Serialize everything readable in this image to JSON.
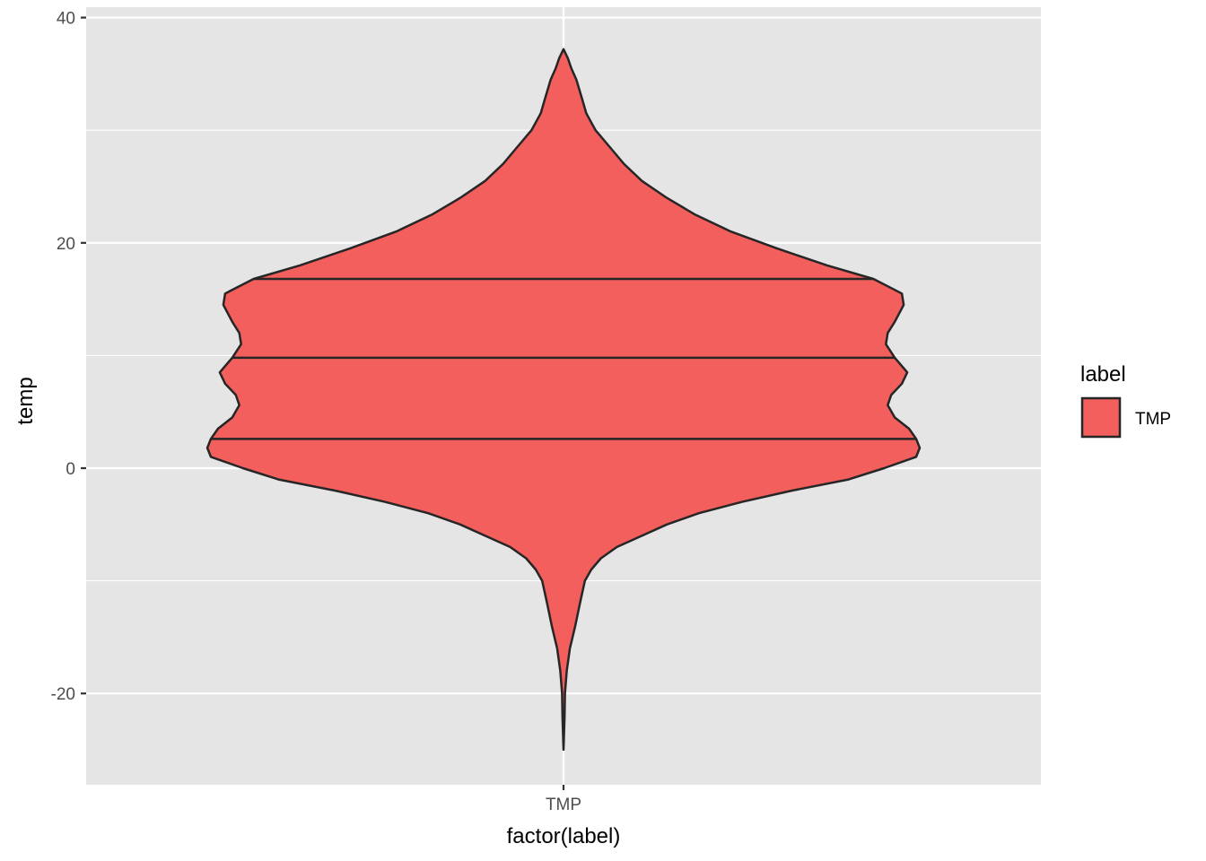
{
  "chart_data": {
    "type": "violin",
    "xlabel": "factor(label)",
    "ylabel": "temp",
    "categories": [
      "TMP"
    ],
    "ylim": [
      -28,
      40
    ],
    "y_ticks": [
      -20,
      0,
      20,
      40
    ],
    "y_tick_labels": [
      "-20",
      "0",
      "20",
      "40"
    ],
    "grid": true,
    "legend": {
      "title": "label",
      "entries": [
        "TMP"
      ],
      "placement": "right"
    },
    "fill_color": "#F35F5C",
    "outline_color": "#262626",
    "panel_background": "#E5E5E5",
    "gridline_color": "#FFFFFF",
    "series": [
      {
        "name": "TMP",
        "y_min": -25,
        "y_max": 37.2,
        "quantiles": {
          "q25": 2.6,
          "median": 9.8,
          "q75": 16.8
        },
        "density_profile": [
          [
            -25.0,
            0.0
          ],
          [
            -22.0,
            0.003
          ],
          [
            -20.0,
            0.004
          ],
          [
            -18.0,
            0.009
          ],
          [
            -16.0,
            0.018
          ],
          [
            -14.0,
            0.033
          ],
          [
            -12.0,
            0.046
          ],
          [
            -10.0,
            0.06
          ],
          [
            -9.0,
            0.078
          ],
          [
            -8.0,
            0.105
          ],
          [
            -7.0,
            0.15
          ],
          [
            -6.0,
            0.22
          ],
          [
            -5.0,
            0.29
          ],
          [
            -4.0,
            0.38
          ],
          [
            -3.0,
            0.5
          ],
          [
            -2.0,
            0.64
          ],
          [
            -1.0,
            0.8
          ],
          [
            0.0,
            0.9
          ],
          [
            1.0,
            0.99
          ],
          [
            1.8,
            1.0
          ],
          [
            2.6,
            0.99
          ],
          [
            3.5,
            0.97
          ],
          [
            4.5,
            0.93
          ],
          [
            5.6,
            0.91
          ],
          [
            6.5,
            0.92
          ],
          [
            7.5,
            0.95
          ],
          [
            8.5,
            0.965
          ],
          [
            9.8,
            0.93
          ],
          [
            11.0,
            0.905
          ],
          [
            12.0,
            0.91
          ],
          [
            13.0,
            0.93
          ],
          [
            14.5,
            0.955
          ],
          [
            15.5,
            0.95
          ],
          [
            16.8,
            0.87
          ],
          [
            18.0,
            0.74
          ],
          [
            19.5,
            0.6
          ],
          [
            21.0,
            0.47
          ],
          [
            22.5,
            0.37
          ],
          [
            24.0,
            0.29
          ],
          [
            25.5,
            0.22
          ],
          [
            27.0,
            0.17
          ],
          [
            28.5,
            0.13
          ],
          [
            30.0,
            0.09
          ],
          [
            31.5,
            0.064
          ],
          [
            33.0,
            0.05
          ],
          [
            34.5,
            0.036
          ],
          [
            35.5,
            0.022
          ],
          [
            36.4,
            0.012
          ],
          [
            37.2,
            0.0
          ]
        ]
      }
    ]
  }
}
